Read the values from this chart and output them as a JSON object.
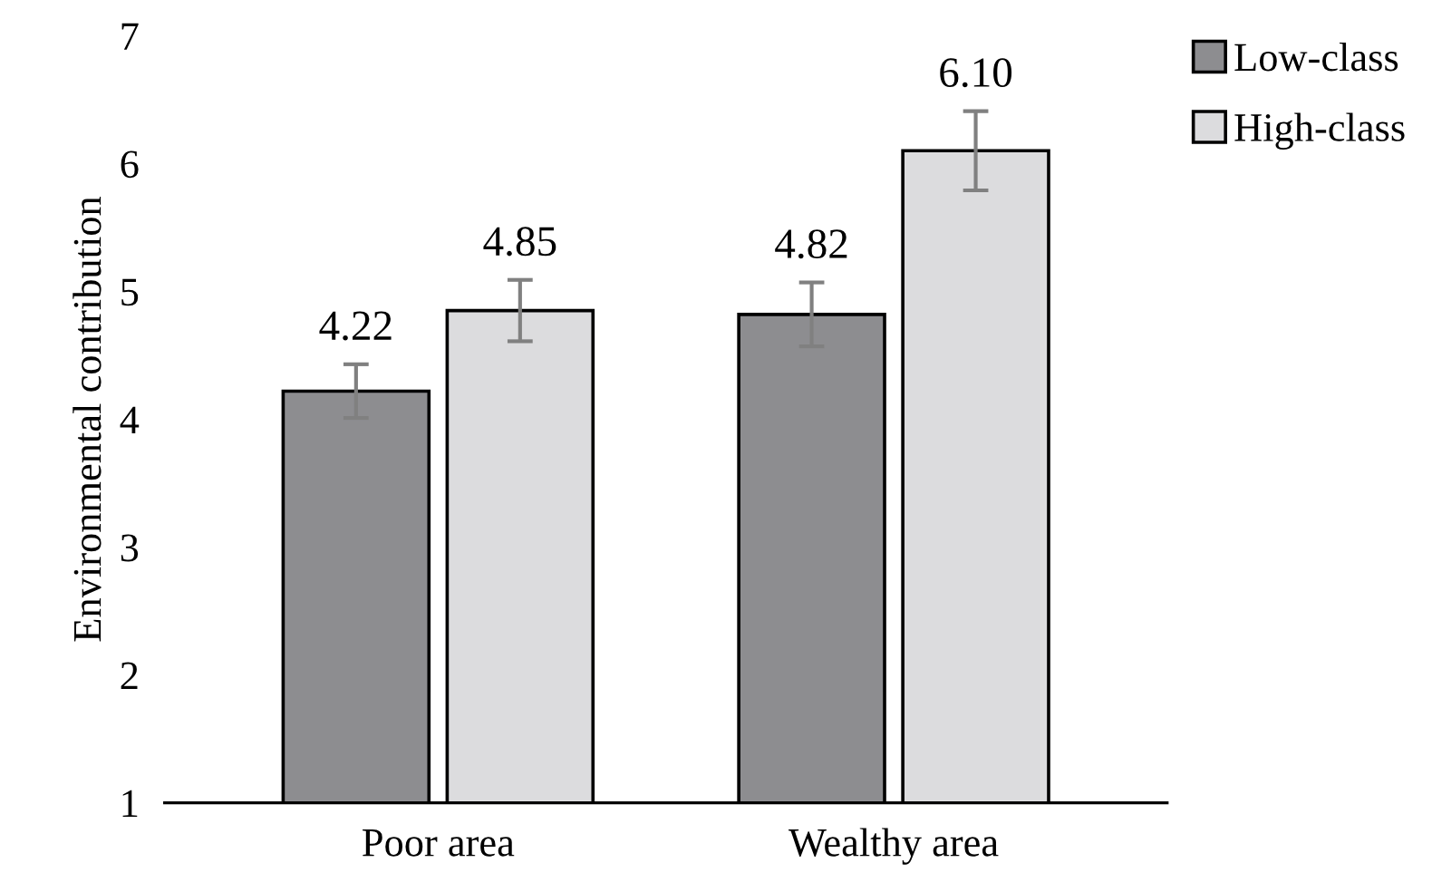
{
  "chart_data": {
    "type": "bar",
    "ylabel": "Environmental contribution",
    "categories": [
      "Poor area",
      "Wealthy area"
    ],
    "series": [
      {
        "name": "Low-class",
        "color": "#8d8d90",
        "values": [
          4.22,
          4.82
        ],
        "errors": [
          0.21,
          0.25
        ],
        "value_labels": [
          "4.22",
          "4.82"
        ]
      },
      {
        "name": "High-class",
        "color": "#dcdcde",
        "values": [
          4.85,
          6.1
        ],
        "errors": [
          0.24,
          0.31
        ],
        "value_labels": [
          "4.85",
          "6.10"
        ]
      }
    ],
    "ylim": [
      1,
      7
    ],
    "yticks": [
      1,
      2,
      3,
      4,
      5,
      6,
      7
    ],
    "grid": false,
    "legend": "top right"
  }
}
